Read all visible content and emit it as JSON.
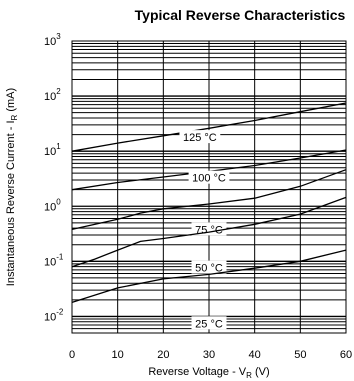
{
  "chart_data": {
    "type": "line",
    "title": "Typical Reverse Characteristics",
    "xlabel_main": "Reverse Voltage - V",
    "xlabel_sub": "R",
    "xlabel_unit": " (V)",
    "ylabel_main": "Instantaneous Reverse Current - I",
    "ylabel_sub": "R",
    "ylabel_unit": " (mA)",
    "xlim": [
      0,
      60
    ],
    "ylim": [
      0.005,
      1000
    ],
    "yscale": "log",
    "grid": true,
    "x_ticks": [
      "0",
      "10",
      "20",
      "30",
      "40",
      "50",
      "60"
    ],
    "x_tick_values": [
      0,
      10,
      20,
      30,
      40,
      50,
      60
    ],
    "y_ticks": [
      {
        "base": "10",
        "exp": "3",
        "value": 1000
      },
      {
        "base": "10",
        "exp": "2",
        "value": 100
      },
      {
        "base": "10",
        "exp": "1",
        "value": 10
      },
      {
        "base": "10",
        "exp": "0",
        "value": 1
      },
      {
        "base": "10",
        "exp": "-1",
        "value": 0.1
      },
      {
        "base": "10",
        "exp": "-2",
        "value": 0.01
      }
    ],
    "series": [
      {
        "name": "125 °C",
        "label_at": [
          28,
          18
        ],
        "x": [
          0,
          10,
          20,
          30,
          40,
          50,
          60
        ],
        "y": [
          10,
          14,
          19,
          26,
          36,
          52,
          75
        ]
      },
      {
        "name": "100 °C",
        "label_at": [
          30,
          3.3
        ],
        "x": [
          0,
          10,
          20,
          30,
          40,
          50,
          60
        ],
        "y": [
          2.0,
          2.7,
          3.4,
          4.3,
          5.5,
          7.5,
          10.5
        ]
      },
      {
        "name": "75 °C",
        "label_at": [
          30,
          0.38
        ],
        "x": [
          0,
          10,
          15,
          20,
          30,
          40,
          50,
          60
        ],
        "y": [
          0.38,
          0.58,
          0.75,
          0.9,
          1.1,
          1.4,
          2.3,
          4.6
        ]
      },
      {
        "name": "50 °C",
        "label_at": [
          30,
          0.077
        ],
        "x": [
          0,
          5,
          10,
          15,
          20,
          30,
          40,
          50,
          60
        ],
        "y": [
          0.08,
          0.11,
          0.16,
          0.23,
          0.26,
          0.34,
          0.47,
          0.72,
          1.45
        ]
      },
      {
        "name": "25 °C",
        "label_at": [
          30,
          0.0075
        ],
        "x": [
          0,
          10,
          20,
          30,
          40,
          50,
          60
        ],
        "y": [
          0.018,
          0.033,
          0.048,
          0.058,
          0.075,
          0.1,
          0.16
        ]
      }
    ]
  }
}
